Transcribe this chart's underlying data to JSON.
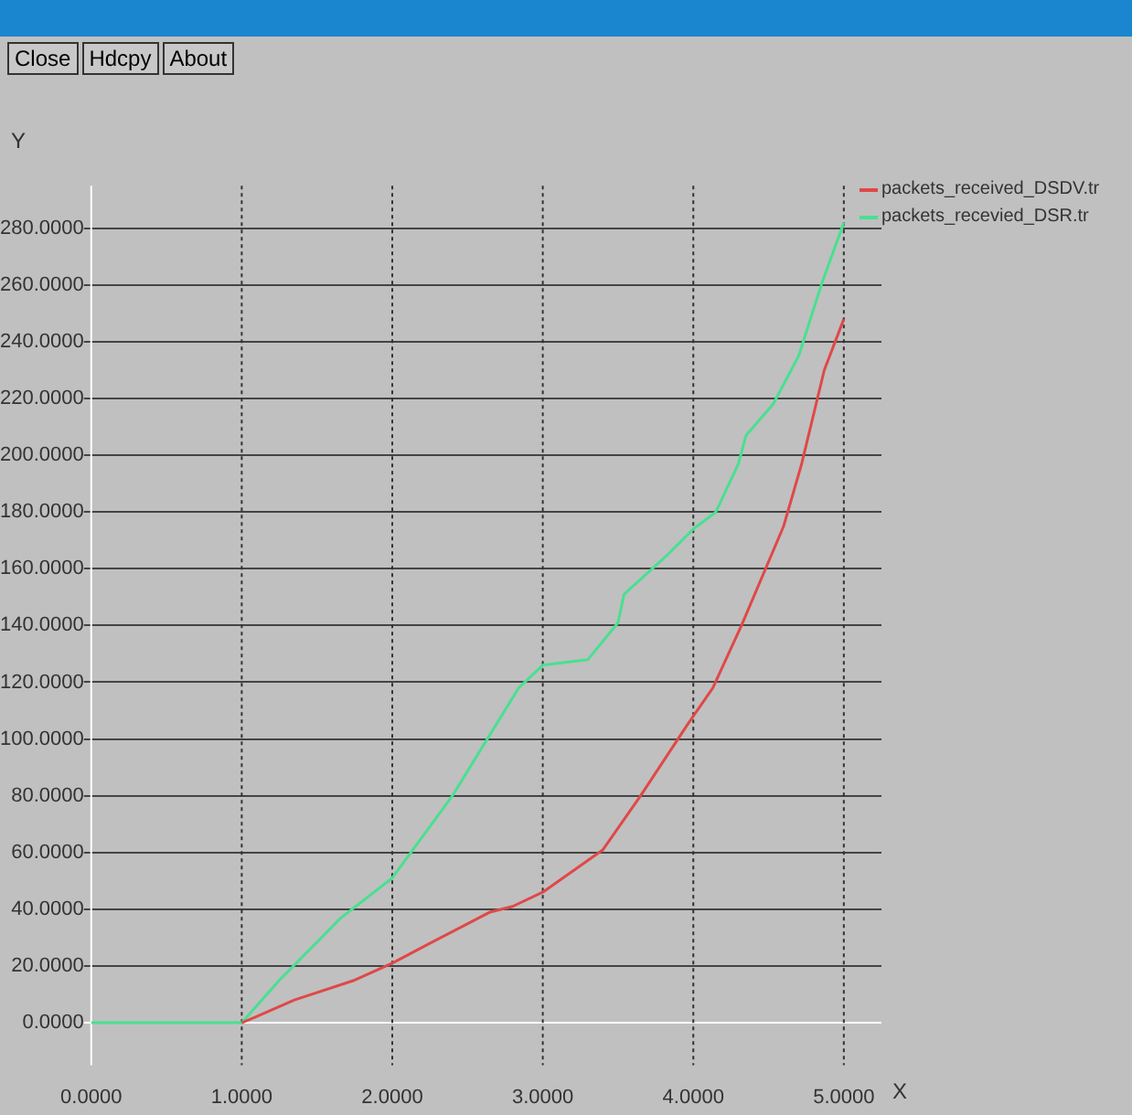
{
  "chart_data": {
    "type": "line",
    "xlabel": "X",
    "ylabel": "Y",
    "annotations": [
      "Close",
      "Hdcpy",
      "About"
    ],
    "xlim": [
      0,
      5.25
    ],
    "ylim": [
      -15,
      295
    ],
    "xticks": [
      {
        "value": 0,
        "label": "0.0000"
      },
      {
        "value": 1,
        "label": "1.0000"
      },
      {
        "value": 2,
        "label": "2.0000"
      },
      {
        "value": 3,
        "label": "3.0000"
      },
      {
        "value": 4,
        "label": "4.0000"
      },
      {
        "value": 5,
        "label": "5.0000"
      }
    ],
    "yticks": [
      {
        "value": 0,
        "label": "0.0000"
      },
      {
        "value": 20,
        "label": "20.0000"
      },
      {
        "value": 40,
        "label": "40.0000"
      },
      {
        "value": 60,
        "label": "60.0000"
      },
      {
        "value": 80,
        "label": "80.0000"
      },
      {
        "value": 100,
        "label": "100.0000"
      },
      {
        "value": 120,
        "label": "120.0000"
      },
      {
        "value": 140,
        "label": "140.0000"
      },
      {
        "value": 160,
        "label": "160.0000"
      },
      {
        "value": 180,
        "label": "180.0000"
      },
      {
        "value": 200,
        "label": "200.0000"
      },
      {
        "value": 220,
        "label": "220.0000"
      },
      {
        "value": 240,
        "label": "240.0000"
      },
      {
        "value": 260,
        "label": "260.0000"
      },
      {
        "value": 280,
        "label": "280.0000"
      }
    ],
    "grid": true,
    "legend": "right",
    "marker": "none",
    "line_style": "solid",
    "series": [
      {
        "name": "packets_received_DSDV.tr",
        "color": "#e04848",
        "x": [
          1.0,
          1.09,
          1.35,
          1.75,
          2.0,
          2.25,
          2.65,
          2.8,
          3.0,
          3.4,
          3.65,
          3.96,
          4.13,
          4.32,
          4.6,
          4.72,
          4.87,
          5.0
        ],
        "values": [
          0,
          2,
          8,
          15,
          21,
          28,
          39,
          41,
          46,
          61,
          80,
          105,
          118,
          140,
          175,
          197,
          230,
          248
        ]
      },
      {
        "name": "packets_recevied_DSR.tr",
        "color": "#48e090",
        "x": [
          0,
          1.0,
          1.25,
          1.66,
          2.0,
          2.4,
          2.84,
          3.0,
          3.15,
          3.3,
          3.5,
          3.54,
          3.83,
          4.0,
          4.15,
          4.3,
          4.35,
          4.53,
          4.7,
          4.85,
          5.0
        ],
        "values": [
          0,
          0,
          15,
          37,
          51,
          80,
          118,
          126,
          127,
          128,
          141,
          151,
          165,
          174,
          180,
          197,
          207,
          218,
          235,
          260,
          282
        ]
      }
    ]
  }
}
